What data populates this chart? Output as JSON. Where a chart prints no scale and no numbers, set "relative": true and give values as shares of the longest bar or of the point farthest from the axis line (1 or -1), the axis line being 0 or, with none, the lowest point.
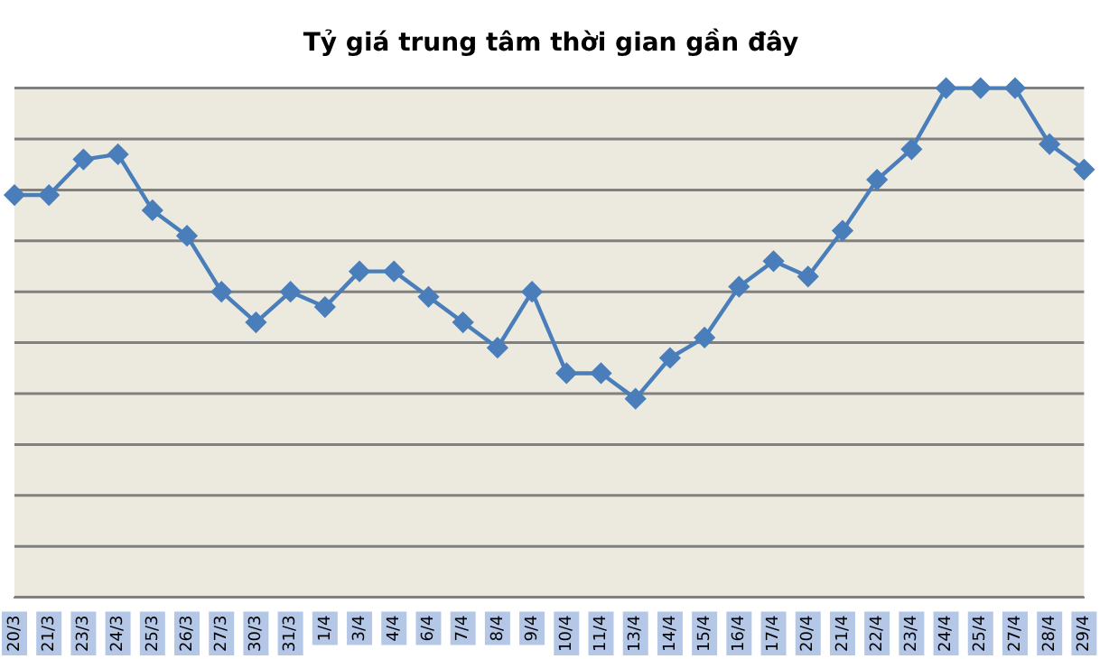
{
  "chart_data": {
    "type": "line",
    "title": "Tỷ giá trung tâm thời gian gần đây",
    "relative": true,
    "grid": "y",
    "marker": "diamond",
    "line_style": "solid",
    "categories": [
      "20/3",
      "21/3",
      "23/3",
      "24/3",
      "25/3",
      "26/3",
      "27/3",
      "30/3",
      "31/3",
      "1/4",
      "3/4",
      "4/4",
      "6/4",
      "7/4",
      "8/4",
      "9/4",
      "10/4",
      "11/4",
      "13/4",
      "14/4",
      "15/4",
      "16/4",
      "17/4",
      "20/4",
      "21/4",
      "22/4",
      "23/4",
      "24/4",
      "25/4",
      "27/4",
      "28/4",
      "29/4"
    ],
    "series": [
      {
        "color": "#4a7ebb",
        "values": [
          0.79,
          0.79,
          0.86,
          0.87,
          0.76,
          0.71,
          0.6,
          0.54,
          0.6,
          0.57,
          0.64,
          0.64,
          0.59,
          0.54,
          0.49,
          0.6,
          0.44,
          0.44,
          0.39,
          0.47,
          0.51,
          0.61,
          0.66,
          0.63,
          0.72,
          0.82,
          0.88,
          1,
          1,
          1,
          0.89,
          0.84
        ]
      }
    ]
  }
}
